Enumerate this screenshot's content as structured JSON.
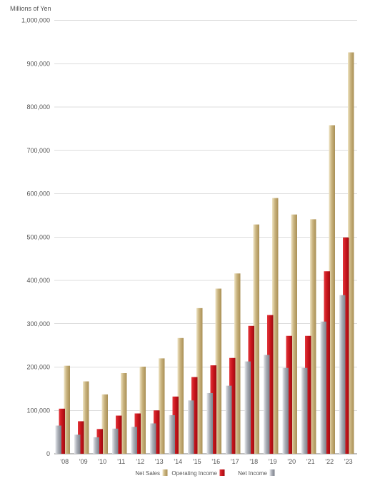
{
  "chart_data": {
    "type": "bar",
    "ylabel": "Millions of Yen",
    "ylim": [
      0,
      1000000
    ],
    "yticks": [
      0,
      100000,
      200000,
      300000,
      400000,
      500000,
      600000,
      700000,
      800000,
      900000,
      1000000
    ],
    "ytick_labels": [
      "0",
      "100,000",
      "200,000",
      "300,000",
      "400,000",
      "500,000",
      "600,000",
      "700,000",
      "800,000",
      "900,000",
      "1,000,000"
    ],
    "categories": [
      "'08",
      "'09",
      "'10",
      "'11",
      "'12",
      "'13",
      "'14",
      "'15",
      "'16",
      "'17",
      "'18",
      "'19",
      "'20",
      "'21",
      "'22",
      "'23"
    ],
    "grid": true,
    "legend_position": "bottom",
    "series": [
      {
        "name": "Net Sales",
        "color": "#c9b37e",
        "values": [
          203000,
          167000,
          137000,
          186000,
          201000,
          220000,
          267000,
          336000,
          381000,
          416000,
          529000,
          590000,
          552000,
          541000,
          758000,
          926000
        ]
      },
      {
        "name": "Operating Income",
        "color": "#c8151c",
        "values": [
          104000,
          75000,
          57000,
          88000,
          93000,
          100000,
          132000,
          177000,
          204000,
          221000,
          295000,
          320000,
          272000,
          272000,
          421000,
          499000
        ]
      },
      {
        "name": "Net Income",
        "color": "#9a9ea6",
        "values": [
          65000,
          44000,
          38000,
          58000,
          62000,
          70000,
          89000,
          123000,
          140000,
          157000,
          213000,
          228000,
          198000,
          198000,
          305000,
          366000
        ]
      }
    ]
  }
}
